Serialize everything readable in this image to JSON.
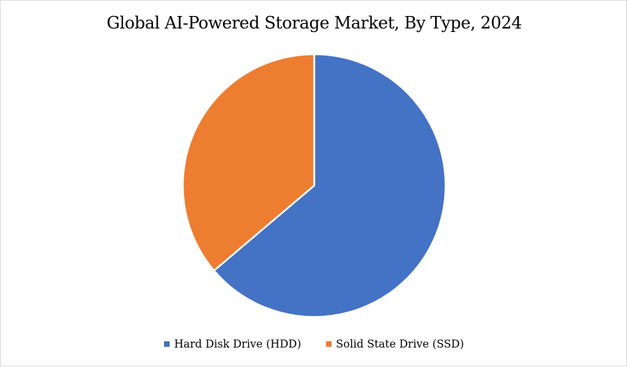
{
  "chart_data": {
    "type": "pie",
    "title": "Global AI-Powered Storage Market, By Type, 2024",
    "categories": [
      "Hard Disk Drive (HDD)",
      "Solid State Drive (SSD)"
    ],
    "values": [
      63.8,
      36.2
    ],
    "colors": [
      "#4472C4",
      "#ED7D31"
    ],
    "legend": "bottom",
    "start_angle": "12 o'clock, clockwise"
  }
}
